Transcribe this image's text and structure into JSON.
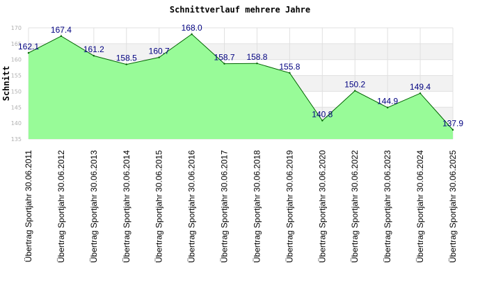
{
  "chart_data": {
    "type": "area",
    "title": "Schnittverlauf mehrere Jahre",
    "xlabel": "",
    "ylabel": "Schnitt",
    "ylim": [
      135,
      170
    ],
    "yticks": [
      135,
      140,
      145,
      150,
      155,
      160,
      165,
      170
    ],
    "categories": [
      "Übertrag Sportjahr 30.06.2011",
      "Übertrag Sportjahr 30.06.2012",
      "Übertrag Sportjahr 30.06.2013",
      "Übertrag Sportjahr 30.06.2014",
      "Übertrag Sportjahr 30.06.2015",
      "Übertrag Sportjahr 30.06.2016",
      "Übertrag Sportjahr 30.06.2017",
      "Übertrag Sportjahr 30.06.2018",
      "Übertrag Sportjahr 30.06.2019",
      "Übertrag Sportjahr 30.06.2020",
      "Übertrag Sportjahr 30.06.2022",
      "Übertrag Sportjahr 30.06.2023",
      "Übertrag Sportjahr 30.06.2024",
      "Übertrag Sportjahr 30.06.2025"
    ],
    "values": [
      162.1,
      167.4,
      161.2,
      158.5,
      160.7,
      168.0,
      158.7,
      158.8,
      155.8,
      140.8,
      150.2,
      144.9,
      149.4,
      137.9
    ],
    "value_labels": [
      "162.1",
      "167.4",
      "161.2",
      "158.5",
      "160.7",
      "168.0",
      "158.7",
      "158.8",
      "155.8",
      "140.8",
      "150.2",
      "144.9",
      "149.4",
      "137.9"
    ],
    "grid": true,
    "colors": {
      "fill": "#98fb98",
      "line": "#006400",
      "band": "#f2f2f2",
      "grid": "#e0e0e0",
      "labels": "#000080"
    }
  }
}
